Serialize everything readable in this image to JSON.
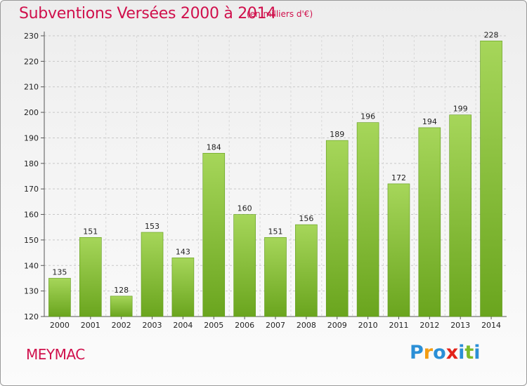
{
  "title": "Subventions Versées 2000 à 2014",
  "unit_note": "(en milliers d'€)",
  "town": "MEYMAC",
  "logo": {
    "letters": [
      "P",
      "r",
      "o",
      "x",
      "i",
      "t",
      "i"
    ],
    "colors": [
      "#2b8fd6",
      "#f39c12",
      "#2b8fd6",
      "#e2231a",
      "#2b8fd6",
      "#7dbb2a",
      "#2b8fd6"
    ]
  },
  "colors": {
    "title": "#d0104c",
    "bar_light": "#a6d65a",
    "bar_dark": "#6aa51e",
    "grid": "#c8c8c8"
  },
  "chart_data": {
    "type": "bar",
    "title": "Subventions Versées 2000 à 2014",
    "ylabel": "",
    "xlabel": "",
    "categories": [
      "2000",
      "2001",
      "2002",
      "2003",
      "2004",
      "2005",
      "2006",
      "2007",
      "2008",
      "2009",
      "2010",
      "2011",
      "2012",
      "2013",
      "2014"
    ],
    "values": [
      135,
      151,
      128,
      153,
      143,
      184,
      160,
      151,
      156,
      189,
      196,
      172,
      194,
      199,
      228
    ],
    "ylim": [
      120,
      230
    ],
    "yticks": [
      120,
      130,
      140,
      150,
      160,
      170,
      180,
      190,
      200,
      210,
      220,
      230
    ],
    "grid": true,
    "grid_style": "dashed"
  }
}
